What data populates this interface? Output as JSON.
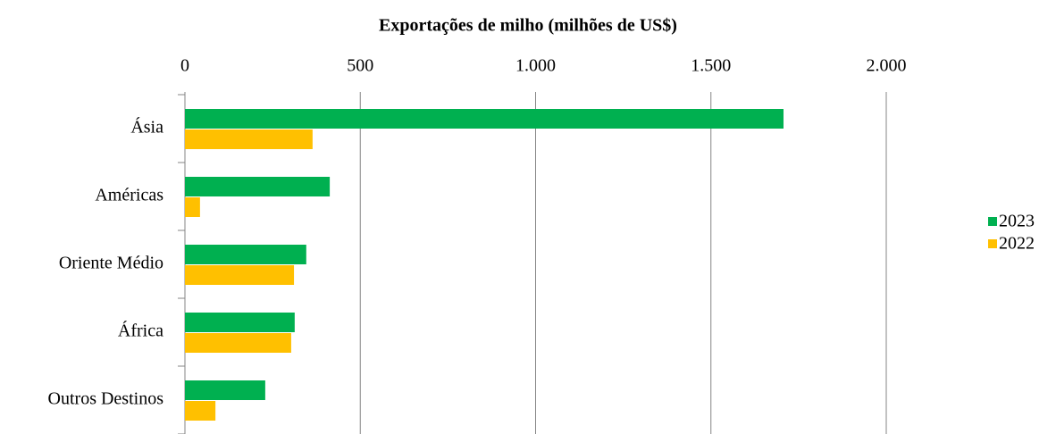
{
  "chart_data": {
    "type": "bar",
    "orientation": "horizontal",
    "title": "Exportações de milho (milhões de US$)",
    "categories": [
      "Ásia",
      "Américas",
      "Oriente Médio",
      "África",
      "Outros Destinos"
    ],
    "series": [
      {
        "name": "2023",
        "color": "#00b050",
        "values": [
          1707,
          413,
          346,
          313,
          229
        ]
      },
      {
        "name": "2022",
        "color": "#ffc000",
        "values": [
          364,
          43,
          311,
          303,
          87
        ]
      }
    ],
    "xlim": [
      0,
      2000
    ],
    "xticks": [
      0,
      500,
      {
        "value": 1000,
        "label": "1.000"
      },
      {
        "value": 1500,
        "label": "1.500"
      },
      {
        "value": 2000,
        "label": "2.000"
      }
    ],
    "grid": true,
    "legend": "right"
  }
}
